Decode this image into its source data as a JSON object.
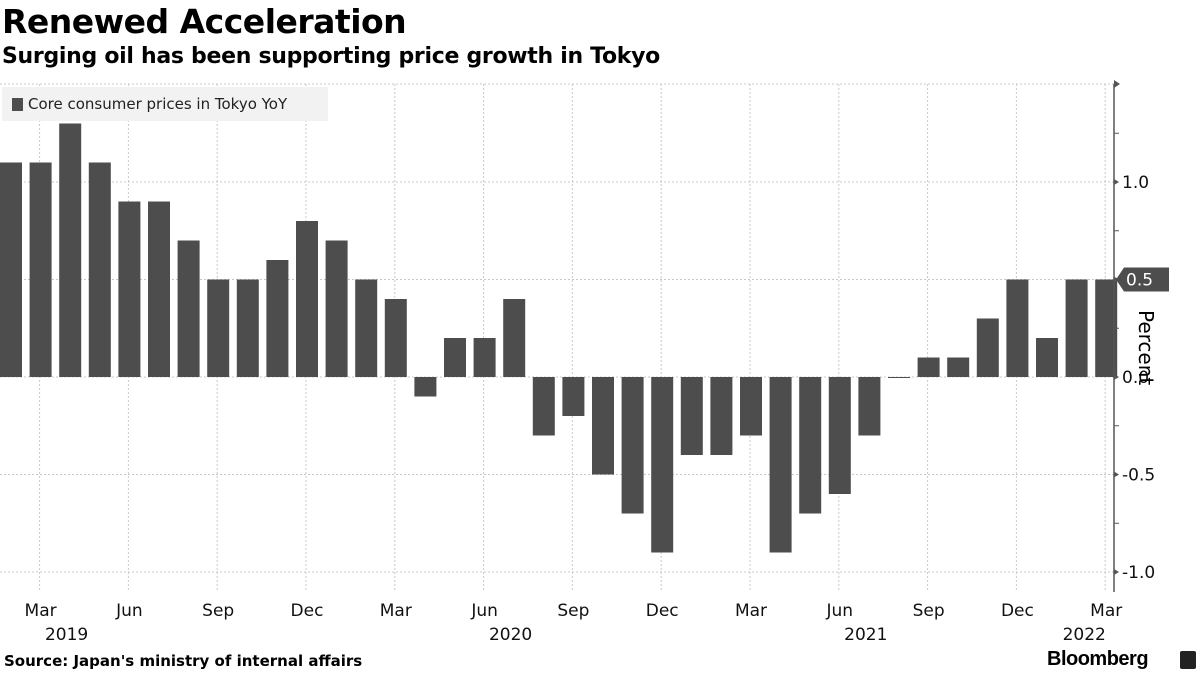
{
  "header": {
    "title": "Renewed Acceleration",
    "subtitle": "Surging oil has been supporting price growth in Tokyo"
  },
  "footer": {
    "source": "Source: Japan's ministry of internal affairs",
    "brand": "Bloomberg"
  },
  "colors": {
    "bar": "#4d4d4d",
    "grid": "#c8c8c8",
    "axis": "#555555",
    "legend_bg": "#f2f2f2"
  },
  "chart_data": {
    "type": "bar",
    "title": "Renewed Acceleration",
    "subtitle": "Surging oil has been supporting price growth in Tokyo",
    "xlabel": "",
    "ylabel": "Percent",
    "ylim": [
      -1.1,
      1.5
    ],
    "y_ticks": [
      -1.0,
      -0.5,
      0.0,
      0.5,
      1.0
    ],
    "y_tick_labels": [
      "-1.0",
      "-0.5",
      "0.0",
      "0.5",
      "1.0"
    ],
    "y_axis_side": "right",
    "grid": true,
    "legend": {
      "entries": [
        "Core consumer prices in Tokyo YoY"
      ],
      "placement": "top-left"
    },
    "last_value_tag": "0.5",
    "x_tick_labels": [
      {
        "month": "Mar",
        "year": "2019",
        "index": 1
      },
      {
        "month": "Jun",
        "year": "",
        "index": 4
      },
      {
        "month": "Sep",
        "year": "",
        "index": 7
      },
      {
        "month": "Dec",
        "year": "",
        "index": 10
      },
      {
        "month": "Mar",
        "year": "",
        "index": 13
      },
      {
        "month": "Jun",
        "year": "2020",
        "index": 16
      },
      {
        "month": "Sep",
        "year": "",
        "index": 19
      },
      {
        "month": "Dec",
        "year": "",
        "index": 22
      },
      {
        "month": "Mar",
        "year": "",
        "index": 25
      },
      {
        "month": "Jun",
        "year": "2021",
        "index": 28
      },
      {
        "month": "Sep",
        "year": "",
        "index": 31
      },
      {
        "month": "Dec",
        "year": "",
        "index": 34
      },
      {
        "month": "Mar",
        "year": "2022",
        "index": 37
      }
    ],
    "categories": [
      "2019-02",
      "2019-03",
      "2019-04",
      "2019-05",
      "2019-06",
      "2019-07",
      "2019-08",
      "2019-09",
      "2019-10",
      "2019-11",
      "2019-12",
      "2020-01",
      "2020-02",
      "2020-03",
      "2020-04",
      "2020-05",
      "2020-06",
      "2020-07",
      "2020-08",
      "2020-09",
      "2020-10",
      "2020-11",
      "2020-12",
      "2021-01",
      "2021-02",
      "2021-03",
      "2021-04",
      "2021-05",
      "2021-06",
      "2021-07",
      "2021-08",
      "2021-09",
      "2021-10",
      "2021-11",
      "2021-12",
      "2022-01",
      "2022-02",
      "2022-03"
    ],
    "series": [
      {
        "name": "Core consumer prices in Tokyo YoY",
        "values": [
          1.1,
          1.1,
          1.3,
          1.1,
          0.9,
          0.9,
          0.7,
          0.5,
          0.5,
          0.6,
          0.8,
          0.7,
          0.5,
          0.4,
          -0.1,
          0.2,
          0.2,
          0.4,
          -0.3,
          -0.2,
          -0.5,
          -0.7,
          -0.9,
          -0.4,
          -0.4,
          -0.3,
          -0.9,
          -0.7,
          -0.6,
          -0.3,
          0.0,
          0.1,
          0.1,
          0.3,
          0.5,
          0.2,
          0.5,
          0.5
        ]
      }
    ]
  }
}
